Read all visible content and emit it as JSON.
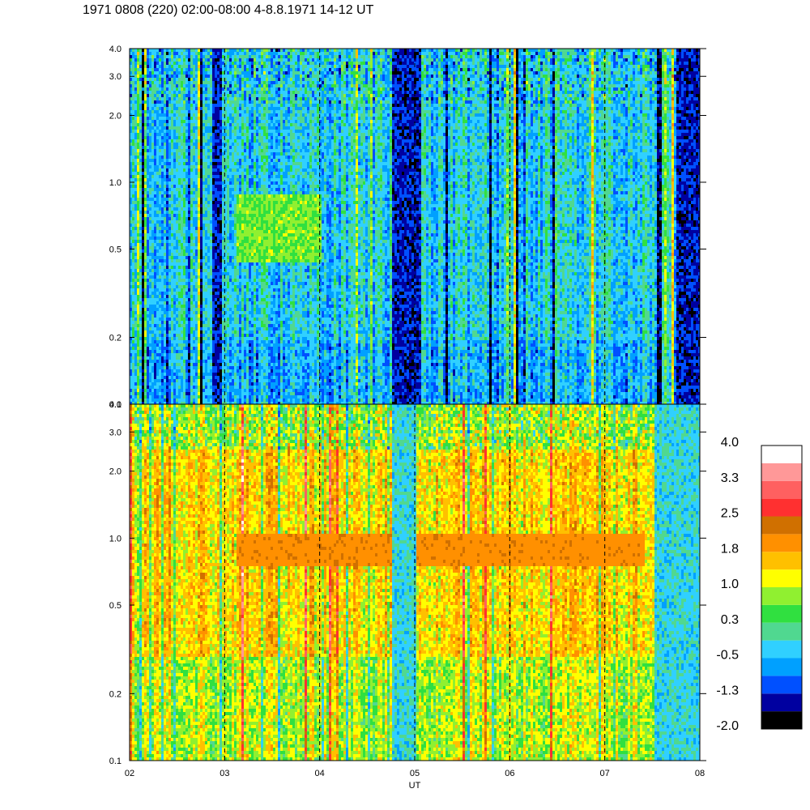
{
  "title": "1971 0808 (220) 02:00-08:00 4-8.8.1971  14-12 UT",
  "chart_data": {
    "type": "heatmap",
    "title": "1971 0808 (220) 02:00-08:00 4-8.8.1971  14-12 UT",
    "xlabel": "UT",
    "ylabel": "",
    "x_ticks": [
      "02",
      "03",
      "04",
      "05",
      "06",
      "07",
      "08"
    ],
    "x_range": [
      2,
      8
    ],
    "y_scale": "log",
    "y_range": [
      0.1,
      4.0
    ],
    "y_ticks": [
      {
        "value": 0.1,
        "label": "0.1"
      },
      {
        "value": 0.2,
        "label": "0.2"
      },
      {
        "value": 0.5,
        "label": "0.5"
      },
      {
        "value": 1.0,
        "label": "1.0"
      },
      {
        "value": 2.0,
        "label": "2.0"
      },
      {
        "value": 3.0,
        "label": "3.0"
      },
      {
        "value": 4.0,
        "label": "4.0"
      }
    ],
    "hour_marker_lines": [
      3,
      4,
      5,
      6,
      7
    ],
    "panels": [
      {
        "position": "top",
        "typical_level": -0.3,
        "low_level_bands_ut": [
          [
            2.85,
            2.95
          ],
          [
            4.75,
            5.05
          ],
          [
            7.75,
            8.0
          ]
        ],
        "elevated_region": {
          "ut": [
            3.1,
            4.0
          ],
          "y": [
            0.45,
            0.9
          ],
          "level": 0.7
        }
      },
      {
        "position": "bottom",
        "typical_level": 1.5,
        "low_level_bands_ut": [
          [
            4.75,
            5.0
          ],
          [
            7.5,
            8.0
          ]
        ],
        "elevated_band": {
          "ut": [
            3.1,
            7.4
          ],
          "y": [
            0.75,
            1.05
          ],
          "level": 2.0
        }
      }
    ],
    "colorbar": {
      "levels": [
        -2.0,
        -1.65,
        -1.3,
        -0.9,
        -0.5,
        -0.1,
        0.3,
        0.65,
        1.0,
        1.4,
        1.8,
        2.15,
        2.5,
        2.9,
        3.3,
        3.65,
        4.0
      ],
      "colors": [
        "#000000",
        "#0000a0",
        "#0050ff",
        "#00a0ff",
        "#30d0ff",
        "#50d890",
        "#30e040",
        "#90f030",
        "#ffff00",
        "#ffc000",
        "#ff9000",
        "#d07000",
        "#ff3030",
        "#ff6060",
        "#ff9898",
        "#ffffff"
      ],
      "tick_labels": [
        "4.0",
        "3.3",
        "2.5",
        "1.8",
        "1.0",
        "0.3",
        "-0.5",
        "-1.3",
        "-2.0"
      ]
    }
  }
}
